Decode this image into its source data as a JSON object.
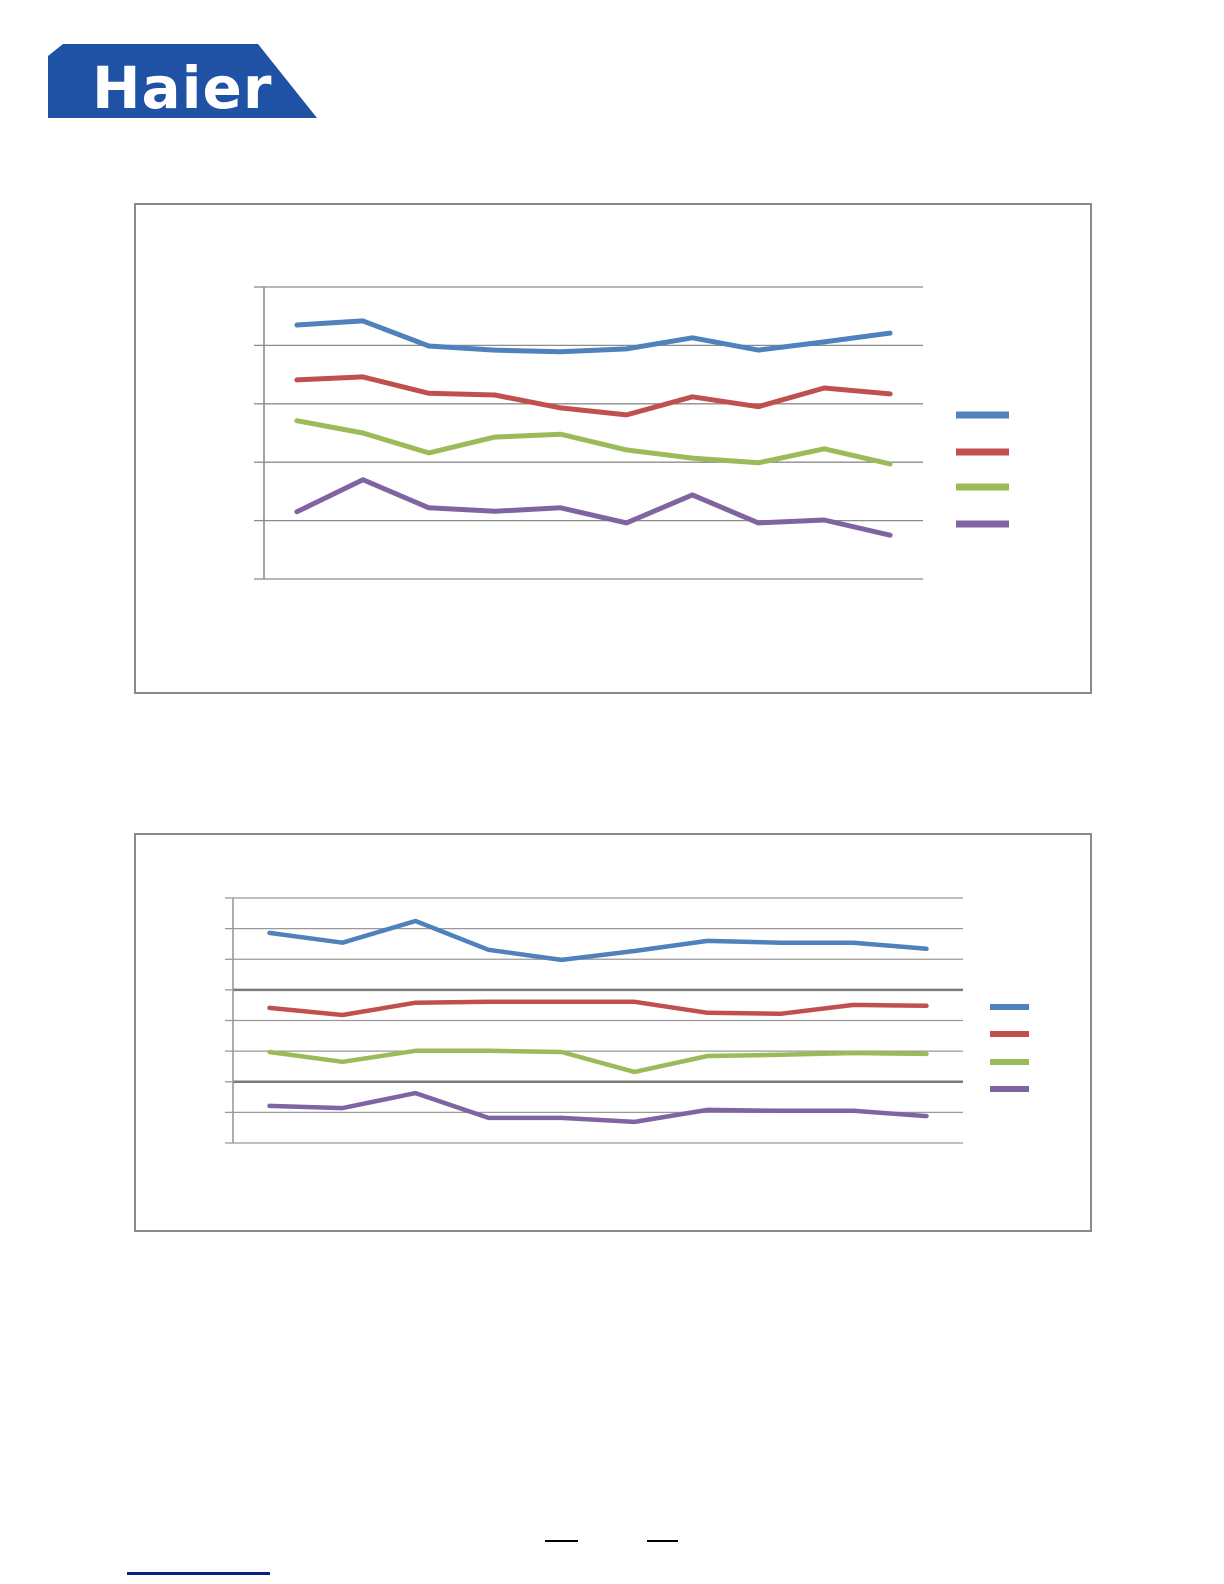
{
  "logo": {
    "text": "Haier",
    "bg_color": "#1F51A4",
    "text_color": "#FFFFFF"
  },
  "chart_data": [
    {
      "type": "line",
      "title": "",
      "xlabel": "",
      "ylabel": "",
      "x_count": 10,
      "categories": [],
      "ylim": [
        0,
        50
      ],
      "grid_step": 10,
      "grid": "on",
      "grid_color": "#8C8C8C",
      "grid_bold_color": "#7A7A7A",
      "bold_gridlines_at": [],
      "frame_border_color": "#8A8A8A",
      "legend_position": "right",
      "legend_labels": [
        "",
        "",
        "",
        ""
      ],
      "series": [
        {
          "name": "blue",
          "color": "#4F81BD",
          "values": [
            43.5,
            44.2,
            39.9,
            39.2,
            38.9,
            39.4,
            41.3,
            39.2,
            40.6,
            42.1
          ]
        },
        {
          "name": "red",
          "color": "#C0504D",
          "values": [
            34.1,
            34.6,
            31.8,
            31.5,
            29.3,
            28.1,
            31.2,
            29.5,
            32.7,
            31.7
          ]
        },
        {
          "name": "green",
          "color": "#9BBB59",
          "values": [
            27.1,
            25.0,
            21.6,
            24.3,
            24.8,
            22.1,
            20.7,
            19.9,
            22.3,
            19.7
          ]
        },
        {
          "name": "purple",
          "color": "#8064A2",
          "values": [
            11.5,
            17.0,
            12.2,
            11.6,
            12.2,
            9.6,
            14.4,
            9.6,
            10.1,
            7.5
          ]
        }
      ]
    },
    {
      "type": "line",
      "title": "",
      "xlabel": "",
      "ylabel": "",
      "x_count": 10,
      "categories": [],
      "ylim": [
        0,
        80
      ],
      "grid_step": 10,
      "grid": "on",
      "grid_color": "#999999",
      "grid_bold_color": "#7A7A7A",
      "bold_gridlines_at": [
        20,
        50
      ],
      "frame_border_color": "#8A8A8A",
      "legend_position": "right",
      "legend_labels": [
        "",
        "",
        "",
        ""
      ],
      "series": [
        {
          "name": "blue",
          "color": "#4F81BD",
          "values": [
            68.6,
            65.4,
            72.5,
            63.1,
            59.8,
            62.7,
            66.0,
            65.4,
            65.4,
            63.4
          ]
        },
        {
          "name": "red",
          "color": "#C0504D",
          "values": [
            44.1,
            41.8,
            45.8,
            46.1,
            46.1,
            46.1,
            42.5,
            42.2,
            45.1,
            44.8
          ]
        },
        {
          "name": "green",
          "color": "#9BBB59",
          "values": [
            29.7,
            26.5,
            30.1,
            30.1,
            29.7,
            23.2,
            28.4,
            28.8,
            29.4,
            29.1
          ]
        },
        {
          "name": "purple",
          "color": "#8064A2",
          "values": [
            12.1,
            11.4,
            16.3,
            8.2,
            8.2,
            6.9,
            10.8,
            10.5,
            10.5,
            8.8
          ]
        }
      ]
    }
  ],
  "footer": {
    "dash_color": "#000000",
    "rule_color": "#0D2185"
  }
}
